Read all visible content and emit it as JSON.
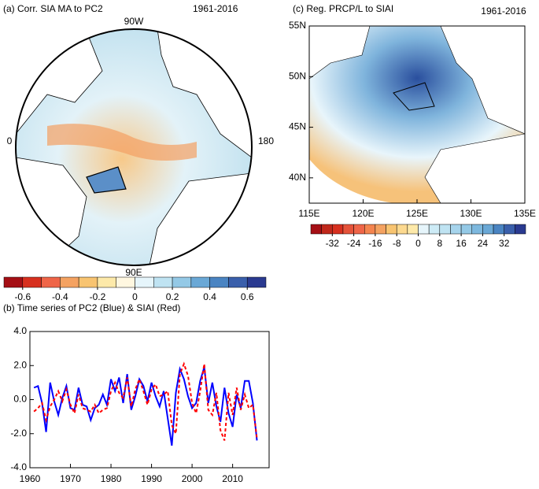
{
  "chart_data": [
    {
      "type": "polar-map",
      "title": "(a) Corr. SIA MA to PC2",
      "period": "1961-2016",
      "labels": [
        "90W",
        "0",
        "180",
        "90E"
      ]
    },
    {
      "type": "colorbar",
      "lim": [
        -0.7,
        0.7
      ],
      "colors": [
        "#a50f15",
        "#d7301f",
        "#ef6548",
        "#f4a261",
        "#f8c471",
        "#fde9a9",
        "#fff7e0",
        "#e6f5fb",
        "#bfe3f2",
        "#94c9e6",
        "#6aa8d6",
        "#4a84c2",
        "#3a5fab",
        "#2a3a90"
      ],
      "ticks": [
        -0.6,
        -0.4,
        -0.2,
        0,
        0.2,
        0.4,
        0.6
      ]
    },
    {
      "type": "line",
      "title": "(b) Time series of PC2 (Blue) & SIAI (Red)",
      "x": [
        1961,
        1962,
        1963,
        1964,
        1965,
        1966,
        1967,
        1968,
        1969,
        1970,
        1971,
        1972,
        1973,
        1974,
        1975,
        1976,
        1977,
        1978,
        1979,
        1980,
        1981,
        1982,
        1983,
        1984,
        1985,
        1986,
        1987,
        1988,
        1989,
        1990,
        1991,
        1992,
        1993,
        1994,
        1995,
        1996,
        1997,
        1998,
        1999,
        2000,
        2001,
        2002,
        2003,
        2004,
        2005,
        2006,
        2007,
        2008,
        2009,
        2010,
        2011,
        2012,
        2013,
        2014,
        2015,
        2016
      ],
      "series": [
        {
          "name": "PC2",
          "color": "#0000ff",
          "dash": false,
          "values": [
            0.7,
            0.8,
            -0.2,
            -1.9,
            1.0,
            -0.1,
            -0.9,
            0.1,
            0.8,
            -0.5,
            -0.6,
            0.7,
            -0.3,
            -0.4,
            -1.2,
            -0.5,
            -0.3,
            0.3,
            -0.3,
            1.2,
            0.5,
            1.3,
            -0.2,
            1.5,
            -0.6,
            0.2,
            1.2,
            0.8,
            -0.1,
            1.0,
            0.2,
            -0.4,
            0.5,
            -1.1,
            -2.7,
            0.4,
            1.8,
            1.2,
            0.2,
            -0.5,
            -0.2,
            1.1,
            1.9,
            -0.2,
            1.0,
            -0.4,
            -1.3,
            0.7,
            -0.8,
            -1.6,
            0.3,
            -0.5,
            1.1,
            1.1,
            -0.2,
            -2.4
          ]
        },
        {
          "name": "SIAI",
          "color": "#ff0000",
          "dash": true,
          "values": [
            -0.7,
            -0.5,
            -0.2,
            -1.2,
            -0.4,
            0.0,
            0.5,
            -0.1,
            0.6,
            -0.3,
            -0.8,
            0.3,
            -0.5,
            -0.6,
            -0.7,
            -0.3,
            -0.8,
            -0.6,
            -0.5,
            0.5,
            1.0,
            0.4,
            0.1,
            1.3,
            -0.4,
            0.6,
            1.2,
            0.5,
            -0.3,
            0.6,
            0.9,
            0.2,
            0.3,
            0.5,
            -1.5,
            -2.0,
            1.5,
            2.1,
            1.4,
            -0.2,
            -0.8,
            0.5,
            2.1,
            -0.6,
            -0.9,
            0.4,
            -1.8,
            -2.4,
            0.4,
            -0.9,
            0.7,
            -0.6,
            0.3,
            -0.5,
            -0.3,
            -2.3
          ]
        }
      ],
      "xlim": [
        1960,
        2019
      ],
      "xticks": [
        1960,
        1970,
        1980,
        1990,
        2000,
        2010
      ],
      "ylim": [
        -4,
        4
      ],
      "yticks": [
        {
          "value": -4,
          "label": "-4.0"
        },
        {
          "value": -2,
          "label": "-2.0"
        },
        {
          "value": 0,
          "label": "0.0"
        },
        {
          "value": 2,
          "label": "2.0"
        },
        {
          "value": 4,
          "label": "4.0"
        }
      ]
    },
    {
      "type": "region-map",
      "title": "(c) Reg. PRCP/L to SIAI",
      "period": "1961-2016",
      "xlim": [
        115,
        135
      ],
      "xticks": [
        {
          "value": 115,
          "label": "115E"
        },
        {
          "value": 120,
          "label": "120E"
        },
        {
          "value": 125,
          "label": "125E"
        },
        {
          "value": 130,
          "label": "130E"
        },
        {
          "value": 135,
          "label": "135E"
        }
      ],
      "ylim": [
        37.5,
        55
      ],
      "yticks": [
        {
          "value": 40,
          "label": "40N"
        },
        {
          "value": 45,
          "label": "45N"
        },
        {
          "value": 50,
          "label": "50N"
        },
        {
          "value": 55,
          "label": "55N"
        }
      ]
    },
    {
      "type": "colorbar",
      "lim": [
        -40,
        40
      ],
      "colors": [
        "#a50f15",
        "#c0281b",
        "#d7301f",
        "#e5533a",
        "#ef6548",
        "#f4844f",
        "#f4a261",
        "#f8c471",
        "#fcd98f",
        "#fde9a9",
        "#e6f5fb",
        "#cdebf6",
        "#bfe3f2",
        "#a6d4ec",
        "#94c9e6",
        "#7db8de",
        "#6aa8d6",
        "#4a84c2",
        "#3a5fab",
        "#2a3a90"
      ],
      "ticks": [
        -32,
        -24,
        -16,
        -8,
        0,
        8,
        16,
        24,
        32
      ]
    }
  ]
}
